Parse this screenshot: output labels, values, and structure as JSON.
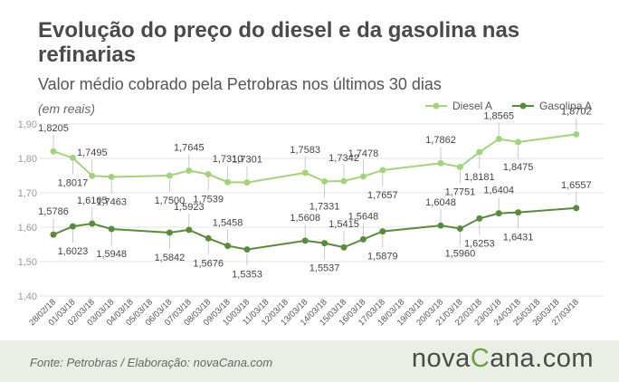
{
  "chart_data": {
    "type": "line",
    "title": "Evolução do preço do diesel e da gasolina nas refinarias",
    "subtitle": "Valor médio cobrado pela Petrobras nos últimos 30 dias",
    "unit": "(em reais)",
    "ylim": [
      1.4,
      1.9
    ],
    "yticks": [
      "1,90",
      "1,80",
      "1,70",
      "1,60",
      "1,50",
      "1,40"
    ],
    "grid": true,
    "legend_position": "top-right",
    "categories": [
      "28/02/18",
      "01/03/18",
      "02/03/18",
      "03/03/18",
      "04/03/18",
      "05/03/18",
      "06/03/18",
      "07/03/18",
      "08/03/18",
      "09/03/18",
      "10/03/18",
      "11/03/18",
      "12/03/18",
      "13/03/18",
      "14/03/18",
      "15/03/18",
      "16/03/18",
      "17/03/18",
      "18/03/18",
      "19/03/18",
      "20/03/18",
      "21/03/18",
      "22/03/18",
      "23/03/18",
      "24/03/18",
      "25/03/18",
      "26/03/18",
      "27/03/18"
    ],
    "series": [
      {
        "name": "Diesel A",
        "color": "#a6d27d",
        "points": [
          {
            "i": 0,
            "y": 1.8205,
            "label": "1,8205",
            "pos": "above"
          },
          {
            "i": 1,
            "y": 1.8017,
            "label": "1,8017",
            "pos": "below"
          },
          {
            "i": 2,
            "y": 1.7495,
            "label": "1,7495",
            "pos": "above"
          },
          {
            "i": 3,
            "y": 1.7463,
            "label": "1,7463",
            "pos": "below"
          },
          {
            "i": 6,
            "y": 1.75,
            "label": "1,7500",
            "pos": "below"
          },
          {
            "i": 7,
            "y": 1.7645,
            "label": "1,7645",
            "pos": "above"
          },
          {
            "i": 8,
            "y": 1.7539,
            "label": "1,7539",
            "pos": "below"
          },
          {
            "i": 9,
            "y": 1.731,
            "label": "1,7310",
            "pos": "above"
          },
          {
            "i": 10,
            "y": 1.7301,
            "label": "1,7301",
            "pos": "above"
          },
          {
            "i": 13,
            "y": 1.7583,
            "label": "1,7583",
            "pos": "above"
          },
          {
            "i": 14,
            "y": 1.7331,
            "label": "1,7331",
            "pos": "below"
          },
          {
            "i": 15,
            "y": 1.7342,
            "label": "1,7342",
            "pos": "above"
          },
          {
            "i": 16,
            "y": 1.7478,
            "label": "1,7478",
            "pos": "above"
          },
          {
            "i": 17,
            "y": 1.7657,
            "label": "1,7657",
            "pos": "below"
          },
          {
            "i": 20,
            "y": 1.7862,
            "label": "1,7862",
            "pos": "above"
          },
          {
            "i": 21,
            "y": 1.7751,
            "label": "1,7751",
            "pos": "below"
          },
          {
            "i": 22,
            "y": 1.8181,
            "label": "1,8181",
            "pos": "below"
          },
          {
            "i": 23,
            "y": 1.8565,
            "label": "1,8565",
            "pos": "above"
          },
          {
            "i": 24,
            "y": 1.8475,
            "label": "1,8475",
            "pos": "below"
          },
          {
            "i": 27,
            "y": 1.8702,
            "label": "1,8702",
            "pos": "above"
          }
        ]
      },
      {
        "name": "Gasolina A",
        "color": "#5b8a3c",
        "points": [
          {
            "i": 0,
            "y": 1.5786,
            "label": "1,5786",
            "pos": "above"
          },
          {
            "i": 1,
            "y": 1.6023,
            "label": "1,6023",
            "pos": "below"
          },
          {
            "i": 2,
            "y": 1.6105,
            "label": "1,6105",
            "pos": "above"
          },
          {
            "i": 3,
            "y": 1.5948,
            "label": "1,5948",
            "pos": "below"
          },
          {
            "i": 6,
            "y": 1.5842,
            "label": "1,5842",
            "pos": "below"
          },
          {
            "i": 7,
            "y": 1.5923,
            "label": "1,5923",
            "pos": "above"
          },
          {
            "i": 8,
            "y": 1.5676,
            "label": "1,5676",
            "pos": "below"
          },
          {
            "i": 9,
            "y": 1.5458,
            "label": "1,5458",
            "pos": "above"
          },
          {
            "i": 10,
            "y": 1.5353,
            "label": "1,5353",
            "pos": "below"
          },
          {
            "i": 13,
            "y": 1.5608,
            "label": "1,5608",
            "pos": "above"
          },
          {
            "i": 14,
            "y": 1.5537,
            "label": "1,5537",
            "pos": "below"
          },
          {
            "i": 15,
            "y": 1.5415,
            "label": "1,5415",
            "pos": "above"
          },
          {
            "i": 16,
            "y": 1.5648,
            "label": "1,5648",
            "pos": "above"
          },
          {
            "i": 17,
            "y": 1.5879,
            "label": "1,5879",
            "pos": "below"
          },
          {
            "i": 20,
            "y": 1.6048,
            "label": "1,6048",
            "pos": "above"
          },
          {
            "i": 21,
            "y": 1.596,
            "label": "1,5960",
            "pos": "below"
          },
          {
            "i": 22,
            "y": 1.6253,
            "label": "1,6253",
            "pos": "below"
          },
          {
            "i": 23,
            "y": 1.6404,
            "label": "1,6404",
            "pos": "above"
          },
          {
            "i": 24,
            "y": 1.6431,
            "label": "1,6431",
            "pos": "below"
          },
          {
            "i": 27,
            "y": 1.6557,
            "label": "1,6557",
            "pos": "above"
          }
        ]
      }
    ]
  },
  "footer": {
    "source": "Fonte:  Petrobras  / Elaboração:  novaCana.com",
    "brand_part1": "nova",
    "brand_c": "C",
    "brand_part2": "ana.com"
  }
}
